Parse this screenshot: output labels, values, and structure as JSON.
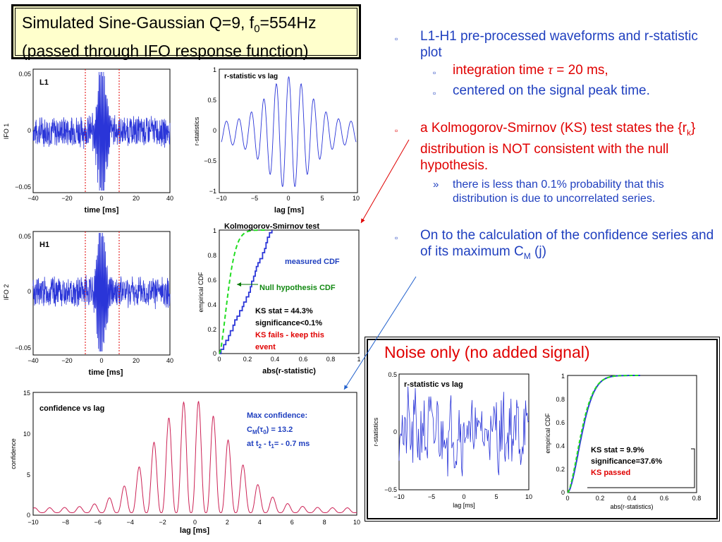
{
  "slide": {
    "title_line1": "Simulated Sine-Gaussian Q=9, f",
    "title_sub": "0",
    "title_rest": "=554Hz",
    "title_line2": "(passed through IFO response function)"
  },
  "bullets": {
    "b1_marker": "",
    "b1": "L1-H1 pre-processed waveforms and r-statistic plot",
    "b1a_pre": "integration time ",
    "b1a_tau": "τ",
    "b1a_post": " = 20 ms,",
    "b1b": "centered on the signal peak time.",
    "b2_pre": "a Kolmogorov-Smirnov (KS) test states the {r",
    "b2_sub": "k",
    "b2_post": "} distribution is NOT consistent with the null hypothesis.",
    "b2a_marker": "»",
    "b2a": "there is less than 0.1% probability that this distribution is due to uncorrelated series.",
    "b3_pre": "On to the calculation of the confidence series and of its maximum C",
    "b3_sub": "M",
    "b3_post": " (j)"
  },
  "plots": {
    "l1": {
      "label": "L1",
      "ylabel": "IFO 1",
      "xlabel": "time [ms]",
      "yticks": [
        "0.05",
        "0",
        "−0.05"
      ],
      "xticks": [
        "−40",
        "−20",
        "0",
        "20",
        "40"
      ]
    },
    "h1": {
      "label": "H1",
      "ylabel": "IFO 2",
      "xlabel": "time [ms]",
      "yticks": [
        "0.05",
        "0",
        "−0.05"
      ],
      "xticks": [
        "−40",
        "−20",
        "0",
        "20",
        "40"
      ]
    },
    "rstat": {
      "title": "r-statistic vs lag",
      "ylabel": "r-statistics",
      "xlabel": "lag [ms]",
      "yticks": [
        "1",
        "0.5",
        "0",
        "−0.5",
        "−1"
      ],
      "xticks": [
        "−10",
        "−5",
        "0",
        "5",
        "10"
      ]
    },
    "ks": {
      "title": "Kolmogorov-Smirnov test",
      "ylabel": "empirical CDF",
      "xlabel": "abs(r-statistic)",
      "yticks": [
        "1",
        "0.8",
        "0.6",
        "0.4",
        "0.2",
        "0"
      ],
      "xticks": [
        "0",
        "0.2",
        "0.4",
        "0.6",
        "0.8",
        "1"
      ],
      "measured": "measured CDF",
      "null": "Null hypothesis CDF",
      "stat1": "KS stat = 44.3%",
      "stat2": "significance<0.1%",
      "fail1": "KS fails - keep this",
      "fail2": "event"
    },
    "conf": {
      "title": "confidence vs lag",
      "ylabel": "confidence",
      "xlabel": "lag [ms]",
      "yticks": [
        "15",
        "10",
        "5",
        "0"
      ],
      "xticks": [
        "−10",
        "−8",
        "−6",
        "−4",
        "−2",
        "0",
        "2",
        "4",
        "6",
        "8",
        "10"
      ],
      "max1": "Max confidence:",
      "max2_pre": "C",
      "max2_sub1": "M",
      "max2_mid": "(τ",
      "max2_sub2": "0",
      "max2_post": ") = 13.2",
      "max3_pre": "at t",
      "max3_sub1": "2",
      "max3_mid": " - t",
      "max3_sub2": "1",
      "max3_post": "= - 0.7 ms"
    }
  },
  "noise": {
    "title": "Noise only (no added signal)",
    "rstat": {
      "title": "r-statistic vs lag",
      "ylabel": "r-statistics",
      "xlabel": "lag [ms]",
      "yticks": [
        "0.5",
        "0",
        "−0.5"
      ],
      "xticks": [
        "−10",
        "−5",
        "0",
        "5",
        "10"
      ]
    },
    "ks": {
      "ylabel": "empirical CDF",
      "xlabel": "abs(r-statistics)",
      "yticks": [
        "1",
        "0.8",
        "0.6",
        "0.4",
        "0.2",
        "0"
      ],
      "xticks": [
        "0",
        "0.2",
        "0.4",
        "0.6",
        "0.8"
      ],
      "stat1": "KS stat = 9.9%",
      "stat2": "significance=37.6%",
      "pass": "KS passed"
    }
  },
  "colors": {
    "signal": "#2a35d8",
    "red_line": "#e00000",
    "null_cdf": "#22dd22",
    "confidence": "#cc2255",
    "arrow_red": "#e00000",
    "arrow_blue": "#1f5fcc"
  }
}
